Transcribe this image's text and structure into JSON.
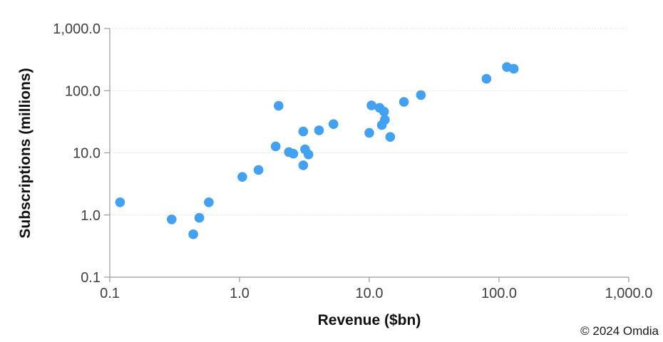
{
  "chart_data": {
    "type": "scatter",
    "title": "",
    "xlabel": "Revenue ($bn)",
    "ylabel": "Subscriptions (millions)",
    "x_scale": "log",
    "y_scale": "log",
    "xlim": [
      0.1,
      1000
    ],
    "ylim": [
      0.1,
      1000
    ],
    "grid": "horizontal-dotted",
    "legend": "none",
    "point_color": "#42A1F1",
    "axis_color": "#9b9b9b",
    "grid_color": "#d9d9d9",
    "tick_label_color": "#404040",
    "x_ticks": [
      {
        "label": "0.1",
        "value": 0.1
      },
      {
        "label": "1.0",
        "value": 1
      },
      {
        "label": "10.0",
        "value": 10
      },
      {
        "label": "100.0",
        "value": 100
      },
      {
        "label": "1,000.0",
        "value": 1000
      }
    ],
    "y_ticks": [
      {
        "label": "0.1",
        "value": 0.1
      },
      {
        "label": "1.0",
        "value": 1
      },
      {
        "label": "10.0",
        "value": 10
      },
      {
        "label": "100.0",
        "value": 100
      },
      {
        "label": "1,000.0",
        "value": 1000
      }
    ],
    "points": [
      {
        "x": 0.12,
        "y": 1.6
      },
      {
        "x": 0.3,
        "y": 0.85
      },
      {
        "x": 0.44,
        "y": 0.49
      },
      {
        "x": 0.49,
        "y": 0.9
      },
      {
        "x": 0.58,
        "y": 1.6
      },
      {
        "x": 1.05,
        "y": 4.1
      },
      {
        "x": 1.4,
        "y": 5.3
      },
      {
        "x": 1.9,
        "y": 12.7
      },
      {
        "x": 2.0,
        "y": 57
      },
      {
        "x": 2.4,
        "y": 10.3
      },
      {
        "x": 2.6,
        "y": 9.7
      },
      {
        "x": 3.1,
        "y": 6.3
      },
      {
        "x": 3.2,
        "y": 11.4
      },
      {
        "x": 3.4,
        "y": 9.4
      },
      {
        "x": 3.1,
        "y": 22
      },
      {
        "x": 4.1,
        "y": 23
      },
      {
        "x": 5.3,
        "y": 29
      },
      {
        "x": 10,
        "y": 21
      },
      {
        "x": 10.4,
        "y": 58
      },
      {
        "x": 12,
        "y": 53
      },
      {
        "x": 12.5,
        "y": 28
      },
      {
        "x": 13,
        "y": 46
      },
      {
        "x": 13.2,
        "y": 34
      },
      {
        "x": 14.5,
        "y": 18
      },
      {
        "x": 18.5,
        "y": 66
      },
      {
        "x": 25,
        "y": 85
      },
      {
        "x": 80,
        "y": 155
      },
      {
        "x": 115,
        "y": 240
      },
      {
        "x": 130,
        "y": 225
      }
    ]
  },
  "footer": {
    "copyright": "© 2024 Omdia"
  }
}
